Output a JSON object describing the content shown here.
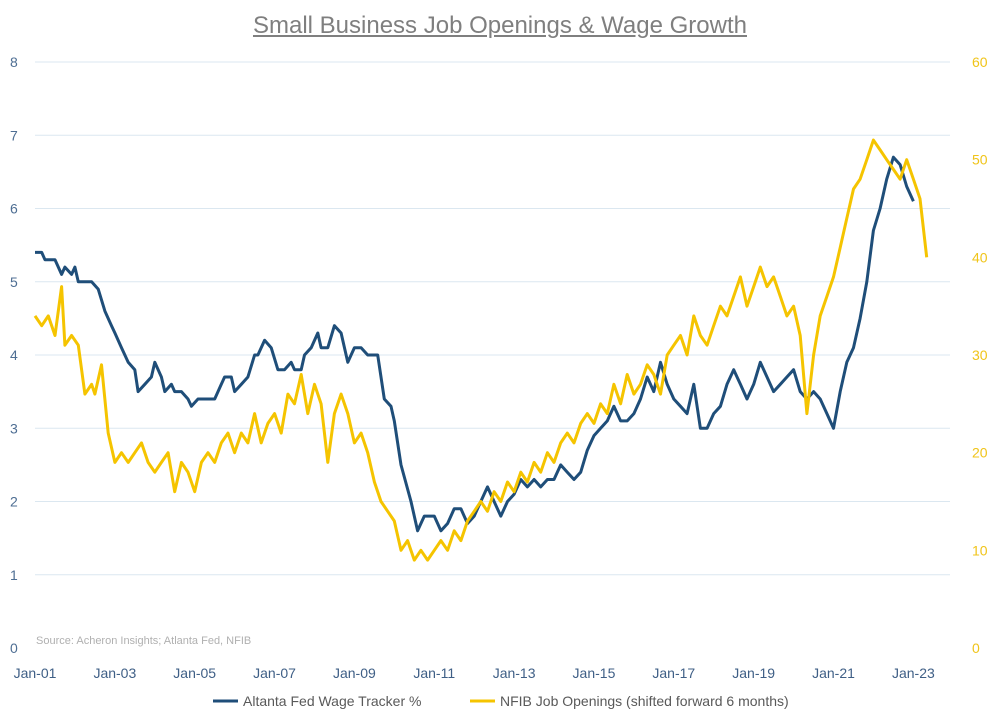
{
  "chart_data": {
    "type": "line",
    "title": "Small Business Job Openings & Wage Growth",
    "source": "Source: Acheron Insights; Atlanta Fed, NFIB",
    "x_start": "2001-01",
    "x_end": "2023-06",
    "x_tick_labels": [
      "Jan-01",
      "Jan-03",
      "Jan-05",
      "Jan-07",
      "Jan-09",
      "Jan-11",
      "Jan-13",
      "Jan-15",
      "Jan-17",
      "Jan-19",
      "Jan-21",
      "Jan-23"
    ],
    "y_left": {
      "min": 0,
      "max": 8,
      "ticks": [
        "0",
        "1",
        "2",
        "3",
        "4",
        "5",
        "6",
        "7",
        "8"
      ]
    },
    "y_right": {
      "min": 0,
      "max": 60,
      "ticks": [
        "0",
        "10",
        "20",
        "30",
        "40",
        "50",
        "60"
      ]
    },
    "grid": true,
    "legend_position": "bottom",
    "series": [
      {
        "name": "Altanta Fed Wage Tracker %",
        "axis": "left",
        "color": "#1f4e79",
        "points": [
          [
            "2001-01",
            5.4
          ],
          [
            "2001-03",
            5.4
          ],
          [
            "2001-04",
            5.3
          ],
          [
            "2001-07",
            5.3
          ],
          [
            "2001-09",
            5.1
          ],
          [
            "2001-10",
            5.2
          ],
          [
            "2001-12",
            5.1
          ],
          [
            "2002-01",
            5.2
          ],
          [
            "2002-02",
            5.0
          ],
          [
            "2002-06",
            5.0
          ],
          [
            "2002-08",
            4.9
          ],
          [
            "2002-10",
            4.6
          ],
          [
            "2002-12",
            4.4
          ],
          [
            "2003-01",
            4.3
          ],
          [
            "2003-03",
            4.1
          ],
          [
            "2003-05",
            3.9
          ],
          [
            "2003-07",
            3.8
          ],
          [
            "2003-08",
            3.5
          ],
          [
            "2003-10",
            3.6
          ],
          [
            "2003-12",
            3.7
          ],
          [
            "2004-01",
            3.9
          ],
          [
            "2004-03",
            3.7
          ],
          [
            "2004-04",
            3.5
          ],
          [
            "2004-06",
            3.6
          ],
          [
            "2004-07",
            3.5
          ],
          [
            "2004-09",
            3.5
          ],
          [
            "2004-11",
            3.4
          ],
          [
            "2004-12",
            3.3
          ],
          [
            "2005-02",
            3.4
          ],
          [
            "2005-05",
            3.4
          ],
          [
            "2005-07",
            3.4
          ],
          [
            "2005-09",
            3.6
          ],
          [
            "2005-10",
            3.7
          ],
          [
            "2005-12",
            3.7
          ],
          [
            "2006-01",
            3.5
          ],
          [
            "2006-03",
            3.6
          ],
          [
            "2006-05",
            3.7
          ],
          [
            "2006-07",
            4.0
          ],
          [
            "2006-08",
            4.0
          ],
          [
            "2006-10",
            4.2
          ],
          [
            "2006-12",
            4.1
          ],
          [
            "2007-02",
            3.8
          ],
          [
            "2007-04",
            3.8
          ],
          [
            "2007-06",
            3.9
          ],
          [
            "2007-07",
            3.8
          ],
          [
            "2007-09",
            3.8
          ],
          [
            "2007-10",
            4.0
          ],
          [
            "2007-12",
            4.1
          ],
          [
            "2008-02",
            4.3
          ],
          [
            "2008-03",
            4.1
          ],
          [
            "2008-05",
            4.1
          ],
          [
            "2008-07",
            4.4
          ],
          [
            "2008-09",
            4.3
          ],
          [
            "2008-11",
            3.9
          ],
          [
            "2009-01",
            4.1
          ],
          [
            "2009-03",
            4.1
          ],
          [
            "2009-05",
            4.0
          ],
          [
            "2009-08",
            4.0
          ],
          [
            "2009-10",
            3.4
          ],
          [
            "2009-12",
            3.3
          ],
          [
            "2010-01",
            3.1
          ],
          [
            "2010-03",
            2.5
          ],
          [
            "2010-06",
            2.0
          ],
          [
            "2010-08",
            1.6
          ],
          [
            "2010-10",
            1.8
          ],
          [
            "2011-01",
            1.8
          ],
          [
            "2011-03",
            1.6
          ],
          [
            "2011-05",
            1.7
          ],
          [
            "2011-07",
            1.9
          ],
          [
            "2011-09",
            1.9
          ],
          [
            "2011-11",
            1.7
          ],
          [
            "2012-01",
            1.8
          ],
          [
            "2012-03",
            2.0
          ],
          [
            "2012-05",
            2.2
          ],
          [
            "2012-07",
            2.0
          ],
          [
            "2012-09",
            1.8
          ],
          [
            "2012-11",
            2.0
          ],
          [
            "2013-01",
            2.1
          ],
          [
            "2013-03",
            2.3
          ],
          [
            "2013-05",
            2.2
          ],
          [
            "2013-07",
            2.3
          ],
          [
            "2013-09",
            2.2
          ],
          [
            "2013-11",
            2.3
          ],
          [
            "2014-01",
            2.3
          ],
          [
            "2014-03",
            2.5
          ],
          [
            "2014-05",
            2.4
          ],
          [
            "2014-07",
            2.3
          ],
          [
            "2014-09",
            2.4
          ],
          [
            "2014-11",
            2.7
          ],
          [
            "2015-01",
            2.9
          ],
          [
            "2015-03",
            3.0
          ],
          [
            "2015-05",
            3.1
          ],
          [
            "2015-07",
            3.3
          ],
          [
            "2015-09",
            3.1
          ],
          [
            "2015-11",
            3.1
          ],
          [
            "2016-01",
            3.2
          ],
          [
            "2016-03",
            3.4
          ],
          [
            "2016-05",
            3.7
          ],
          [
            "2016-07",
            3.5
          ],
          [
            "2016-09",
            3.9
          ],
          [
            "2016-11",
            3.6
          ],
          [
            "2017-01",
            3.4
          ],
          [
            "2017-03",
            3.3
          ],
          [
            "2017-05",
            3.2
          ],
          [
            "2017-07",
            3.6
          ],
          [
            "2017-09",
            3.0
          ],
          [
            "2017-11",
            3.0
          ],
          [
            "2018-01",
            3.2
          ],
          [
            "2018-03",
            3.3
          ],
          [
            "2018-05",
            3.6
          ],
          [
            "2018-07",
            3.8
          ],
          [
            "2018-09",
            3.6
          ],
          [
            "2018-11",
            3.4
          ],
          [
            "2019-01",
            3.6
          ],
          [
            "2019-03",
            3.9
          ],
          [
            "2019-05",
            3.7
          ],
          [
            "2019-07",
            3.5
          ],
          [
            "2019-09",
            3.6
          ],
          [
            "2019-11",
            3.7
          ],
          [
            "2020-01",
            3.8
          ],
          [
            "2020-03",
            3.5
          ],
          [
            "2020-05",
            3.4
          ],
          [
            "2020-07",
            3.5
          ],
          [
            "2020-09",
            3.4
          ],
          [
            "2020-11",
            3.2
          ],
          [
            "2021-01",
            3.0
          ],
          [
            "2021-03",
            3.5
          ],
          [
            "2021-05",
            3.9
          ],
          [
            "2021-07",
            4.1
          ],
          [
            "2021-09",
            4.5
          ],
          [
            "2021-11",
            5.0
          ],
          [
            "2022-01",
            5.7
          ],
          [
            "2022-03",
            6.0
          ],
          [
            "2022-05",
            6.4
          ],
          [
            "2022-07",
            6.7
          ],
          [
            "2022-09",
            6.6
          ],
          [
            "2022-11",
            6.3
          ],
          [
            "2023-01",
            6.1
          ]
        ]
      },
      {
        "name": "NFIB Job Openings (shifted forward 6 months)",
        "axis": "right",
        "color": "#f5c400",
        "points": [
          [
            "2001-01",
            34
          ],
          [
            "2001-03",
            33
          ],
          [
            "2001-05",
            34
          ],
          [
            "2001-07",
            32
          ],
          [
            "2001-09",
            37
          ],
          [
            "2001-10",
            31
          ],
          [
            "2001-12",
            32
          ],
          [
            "2002-02",
            31
          ],
          [
            "2002-04",
            26
          ],
          [
            "2002-06",
            27
          ],
          [
            "2002-07",
            26
          ],
          [
            "2002-09",
            29
          ],
          [
            "2002-11",
            22
          ],
          [
            "2003-01",
            19
          ],
          [
            "2003-03",
            20
          ],
          [
            "2003-05",
            19
          ],
          [
            "2003-07",
            20
          ],
          [
            "2003-09",
            21
          ],
          [
            "2003-11",
            19
          ],
          [
            "2004-01",
            18
          ],
          [
            "2004-03",
            19
          ],
          [
            "2004-05",
            20
          ],
          [
            "2004-07",
            16
          ],
          [
            "2004-09",
            19
          ],
          [
            "2004-11",
            18
          ],
          [
            "2005-01",
            16
          ],
          [
            "2005-03",
            19
          ],
          [
            "2005-05",
            20
          ],
          [
            "2005-07",
            19
          ],
          [
            "2005-09",
            21
          ],
          [
            "2005-11",
            22
          ],
          [
            "2006-01",
            20
          ],
          [
            "2006-03",
            22
          ],
          [
            "2006-05",
            21
          ],
          [
            "2006-07",
            24
          ],
          [
            "2006-09",
            21
          ],
          [
            "2006-11",
            23
          ],
          [
            "2007-01",
            24
          ],
          [
            "2007-03",
            22
          ],
          [
            "2007-05",
            26
          ],
          [
            "2007-07",
            25
          ],
          [
            "2007-09",
            28
          ],
          [
            "2007-11",
            24
          ],
          [
            "2008-01",
            27
          ],
          [
            "2008-03",
            25
          ],
          [
            "2008-05",
            19
          ],
          [
            "2008-07",
            24
          ],
          [
            "2008-09",
            26
          ],
          [
            "2008-11",
            24
          ],
          [
            "2009-01",
            21
          ],
          [
            "2009-03",
            22
          ],
          [
            "2009-05",
            20
          ],
          [
            "2009-07",
            17
          ],
          [
            "2009-09",
            15
          ],
          [
            "2009-11",
            14
          ],
          [
            "2010-01",
            13
          ],
          [
            "2010-03",
            10
          ],
          [
            "2010-05",
            11
          ],
          [
            "2010-07",
            9
          ],
          [
            "2010-09",
            10
          ],
          [
            "2010-11",
            9
          ],
          [
            "2011-01",
            10
          ],
          [
            "2011-03",
            11
          ],
          [
            "2011-05",
            10
          ],
          [
            "2011-07",
            12
          ],
          [
            "2011-09",
            11
          ],
          [
            "2011-11",
            13
          ],
          [
            "2012-01",
            14
          ],
          [
            "2012-03",
            15
          ],
          [
            "2012-05",
            14
          ],
          [
            "2012-07",
            16
          ],
          [
            "2012-09",
            15
          ],
          [
            "2012-11",
            17
          ],
          [
            "2013-01",
            16
          ],
          [
            "2013-03",
            18
          ],
          [
            "2013-05",
            17
          ],
          [
            "2013-07",
            19
          ],
          [
            "2013-09",
            18
          ],
          [
            "2013-11",
            20
          ],
          [
            "2014-01",
            19
          ],
          [
            "2014-03",
            21
          ],
          [
            "2014-05",
            22
          ],
          [
            "2014-07",
            21
          ],
          [
            "2014-09",
            23
          ],
          [
            "2014-11",
            24
          ],
          [
            "2015-01",
            23
          ],
          [
            "2015-03",
            25
          ],
          [
            "2015-05",
            24
          ],
          [
            "2015-07",
            27
          ],
          [
            "2015-09",
            25
          ],
          [
            "2015-11",
            28
          ],
          [
            "2016-01",
            26
          ],
          [
            "2016-03",
            27
          ],
          [
            "2016-05",
            29
          ],
          [
            "2016-07",
            28
          ],
          [
            "2016-09",
            26
          ],
          [
            "2016-11",
            30
          ],
          [
            "2017-01",
            31
          ],
          [
            "2017-03",
            32
          ],
          [
            "2017-05",
            30
          ],
          [
            "2017-07",
            34
          ],
          [
            "2017-09",
            32
          ],
          [
            "2017-11",
            31
          ],
          [
            "2018-01",
            33
          ],
          [
            "2018-03",
            35
          ],
          [
            "2018-05",
            34
          ],
          [
            "2018-07",
            36
          ],
          [
            "2018-09",
            38
          ],
          [
            "2018-11",
            35
          ],
          [
            "2019-01",
            37
          ],
          [
            "2019-03",
            39
          ],
          [
            "2019-05",
            37
          ],
          [
            "2019-07",
            38
          ],
          [
            "2019-09",
            36
          ],
          [
            "2019-11",
            34
          ],
          [
            "2020-01",
            35
          ],
          [
            "2020-03",
            32
          ],
          [
            "2020-05",
            24
          ],
          [
            "2020-07",
            30
          ],
          [
            "2020-09",
            34
          ],
          [
            "2020-11",
            36
          ],
          [
            "2021-01",
            38
          ],
          [
            "2021-03",
            41
          ],
          [
            "2021-05",
            44
          ],
          [
            "2021-07",
            47
          ],
          [
            "2021-09",
            48
          ],
          [
            "2021-11",
            50
          ],
          [
            "2022-01",
            52
          ],
          [
            "2022-03",
            51
          ],
          [
            "2022-05",
            50
          ],
          [
            "2022-07",
            49
          ],
          [
            "2022-09",
            48
          ],
          [
            "2022-11",
            50
          ],
          [
            "2023-01",
            48
          ],
          [
            "2023-03",
            46
          ],
          [
            "2023-05",
            40
          ]
        ]
      }
    ]
  },
  "legend": {
    "items": [
      {
        "label": "Altanta Fed Wage Tracker %",
        "color": "#1f4e79"
      },
      {
        "label": "NFIB Job Openings (shifted forward 6 months)",
        "color": "#f5c400"
      }
    ]
  }
}
